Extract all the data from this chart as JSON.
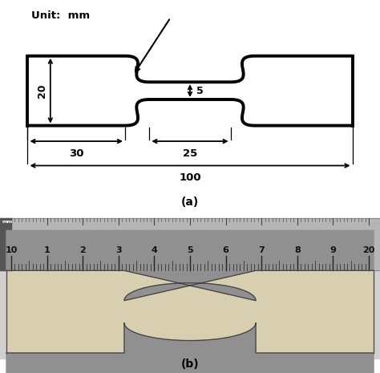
{
  "title_a": "(a)",
  "title_b": "(b)",
  "unit_text": "Unit:  mm",
  "dim_20": "20",
  "dim_5": "5",
  "dim_30": "30",
  "dim_25": "25",
  "dim_100": "100",
  "bg_color": "#ffffff",
  "line_color": "#000000",
  "lw": 2.8,
  "ruler_numbers": [
    "10",
    "1",
    "2",
    "3",
    "4",
    "5",
    "6",
    "7",
    "8",
    "9",
    "20"
  ],
  "ruler_bg": "#b8b8b8",
  "spec_color": "#d8ceb0",
  "photo_bg": "#a8a8a8",
  "notch_bg": "#909090"
}
